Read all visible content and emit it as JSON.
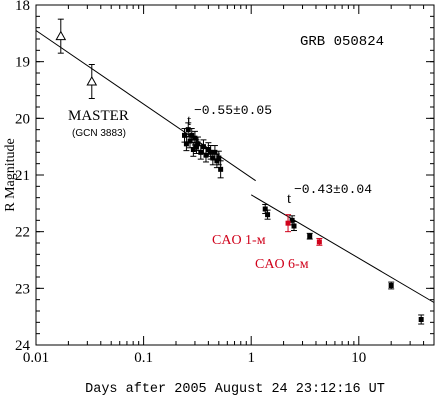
{
  "chart_data": {
    "type": "scatter",
    "title": "GRB 050824",
    "xlabel": "Days after 2005 August 24 23:12:16 UT",
    "ylabel": "R Magnitude",
    "xscale": "log",
    "xlim": [
      0.01,
      50
    ],
    "ylim": [
      24,
      18
    ],
    "y_inverted": true,
    "x_ticklabels": [
      "0.01",
      "0.1",
      "1",
      "10"
    ],
    "y_ticklabels": [
      "18",
      "19",
      "20",
      "21",
      "22",
      "23",
      "24"
    ],
    "series": [
      {
        "name": "MASTER",
        "marker": "open-triangle",
        "color": "#000000",
        "points": [
          {
            "x": 0.017,
            "y": 18.55,
            "err": 0.3
          },
          {
            "x": 0.033,
            "y": 19.35,
            "err": 0.3
          }
        ]
      },
      {
        "marker": "filled-square",
        "color": "#000000",
        "points": [
          {
            "x": 0.24,
            "y": 20.3,
            "err": 0.12
          },
          {
            "x": 0.25,
            "y": 20.45,
            "err": 0.12
          },
          {
            "x": 0.26,
            "y": 20.2,
            "err": 0.12
          },
          {
            "x": 0.27,
            "y": 20.4,
            "err": 0.12
          },
          {
            "x": 0.28,
            "y": 20.3,
            "err": 0.12
          },
          {
            "x": 0.29,
            "y": 20.55,
            "err": 0.12
          },
          {
            "x": 0.3,
            "y": 20.35,
            "err": 0.12
          },
          {
            "x": 0.31,
            "y": 20.5,
            "err": 0.12
          },
          {
            "x": 0.32,
            "y": 20.45,
            "err": 0.12
          },
          {
            "x": 0.34,
            "y": 20.6,
            "err": 0.12
          },
          {
            "x": 0.36,
            "y": 20.5,
            "err": 0.12
          },
          {
            "x": 0.38,
            "y": 20.65,
            "err": 0.12
          },
          {
            "x": 0.4,
            "y": 20.55,
            "err": 0.12
          },
          {
            "x": 0.42,
            "y": 20.6,
            "err": 0.12
          },
          {
            "x": 0.44,
            "y": 20.7,
            "err": 0.12
          },
          {
            "x": 0.46,
            "y": 20.6,
            "err": 0.12
          },
          {
            "x": 0.48,
            "y": 20.75,
            "err": 0.12
          },
          {
            "x": 0.5,
            "y": 20.7,
            "err": 0.12
          },
          {
            "x": 0.52,
            "y": 20.9,
            "err": 0.15
          },
          {
            "x": 1.35,
            "y": 21.6,
            "err": 0.08
          },
          {
            "x": 1.42,
            "y": 21.7,
            "err": 0.08
          },
          {
            "x": 2.4,
            "y": 21.8,
            "err": 0.08
          },
          {
            "x": 2.5,
            "y": 21.9,
            "err": 0.08
          },
          {
            "x": 3.5,
            "y": 22.08,
            "err": 0.05
          },
          {
            "x": 20.0,
            "y": 22.95,
            "err": 0.06
          },
          {
            "x": 38.0,
            "y": 23.55,
            "err": 0.08
          }
        ]
      },
      {
        "name": "CAO 1-м",
        "marker": "filled-square",
        "color": "#d0021b",
        "points": [
          {
            "x": 2.2,
            "y": 21.85,
            "err": 0.15
          }
        ]
      },
      {
        "name": "CAO 6-м",
        "marker": "filled-square",
        "color": "#d0021b",
        "points": [
          {
            "x": 4.3,
            "y": 22.18,
            "err": 0.06
          }
        ]
      }
    ],
    "fits": [
      {
        "label": "t^{-0.55±0.05}",
        "x": [
          0.01,
          1.1
        ],
        "y": [
          18.45,
          21.1
        ]
      },
      {
        "label": "t^{-0.43±0.04}",
        "x": [
          1.0,
          50
        ],
        "y": [
          21.35,
          23.25
        ]
      }
    ],
    "annotations": {
      "title": "GRB 050824",
      "master": "MASTER",
      "master_ref": "(GCN 3883)",
      "fit1_base": "t",
      "fit1_exp": "−0.55±0.05",
      "fit2_base": "t",
      "fit2_exp": "−0.43±0.04",
      "cao1": "CAO 1-м",
      "cao6": "CAO 6-м"
    }
  }
}
